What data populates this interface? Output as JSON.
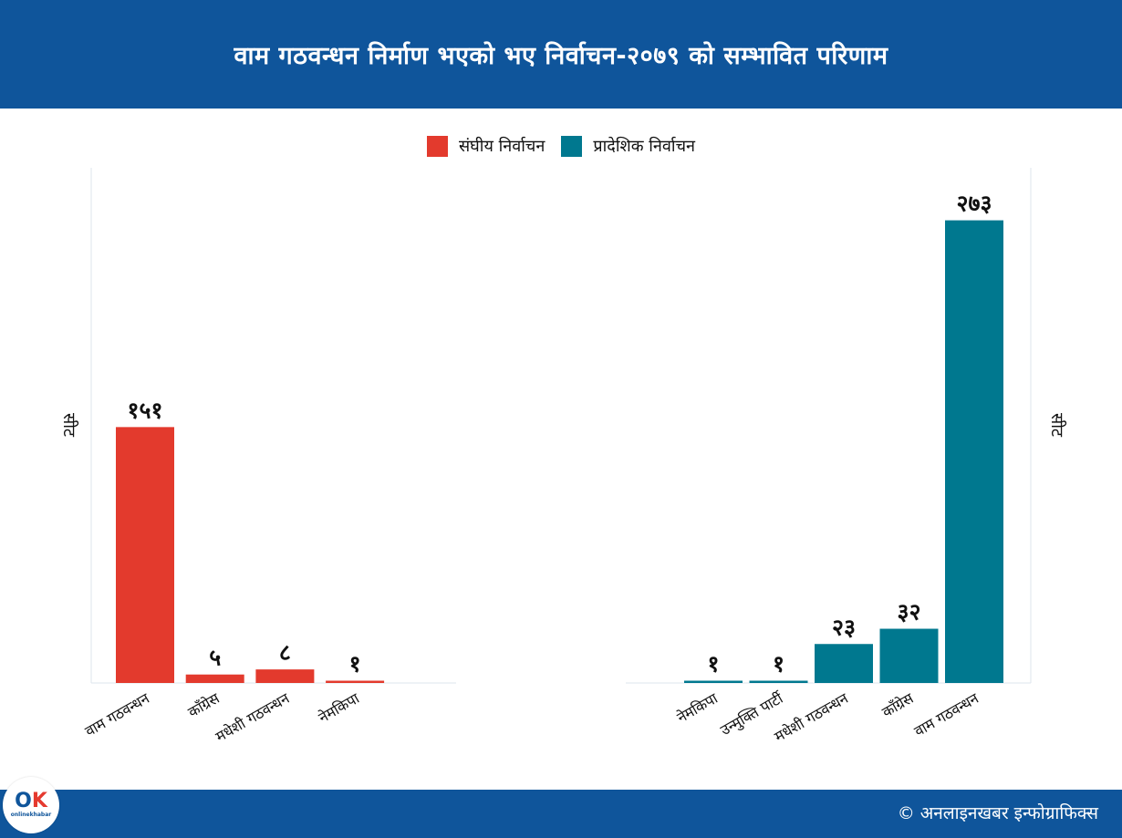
{
  "header": {
    "title": "वाम गठवन्धन निर्माण भएको भए निर्वाचन-२०७९ को सम्भावित परिणाम"
  },
  "legend": [
    {
      "label": "संघीय निर्वाचन",
      "color": "#e33a2d"
    },
    {
      "label": "प्रादेशिक निर्वाचन",
      "color": "#00788f"
    }
  ],
  "chart_data": [
    {
      "type": "bar",
      "categories": [
        "वाम गठवन्धन",
        "काँग्रेस",
        "मधेशी गठवन्धन",
        "नेमकिपा"
      ],
      "values": [
        151,
        5,
        8,
        1
      ],
      "value_labels": [
        "१५१",
        "५",
        "८",
        "१"
      ],
      "ylabel": "सीट",
      "ylim": [
        0,
        304
      ],
      "color": "#e33a2d",
      "series_name": "संघीय निर्वाचन",
      "grid": false
    },
    {
      "type": "bar",
      "categories": [
        "नेमकिपा",
        "उन्मुक्ति पार्टी",
        "मधेशी गठवन्धन",
        "काँग्रेस",
        "वाम गठवन्धन"
      ],
      "values": [
        1,
        1,
        23,
        32,
        273
      ],
      "value_labels": [
        "१",
        "१",
        "२३",
        "३२",
        "२७३"
      ],
      "ylabel": "सीट",
      "ylim": [
        0,
        304
      ],
      "color": "#00788f",
      "series_name": "प्रादेशिक निर्वाचन",
      "grid": false
    }
  ],
  "footer": {
    "credit": "© अनलाइनखबर इन्फोग्राफिक्स"
  },
  "logo": {
    "mark_o": "O",
    "mark_k": "K",
    "wordmark": "onlinekhabar"
  }
}
